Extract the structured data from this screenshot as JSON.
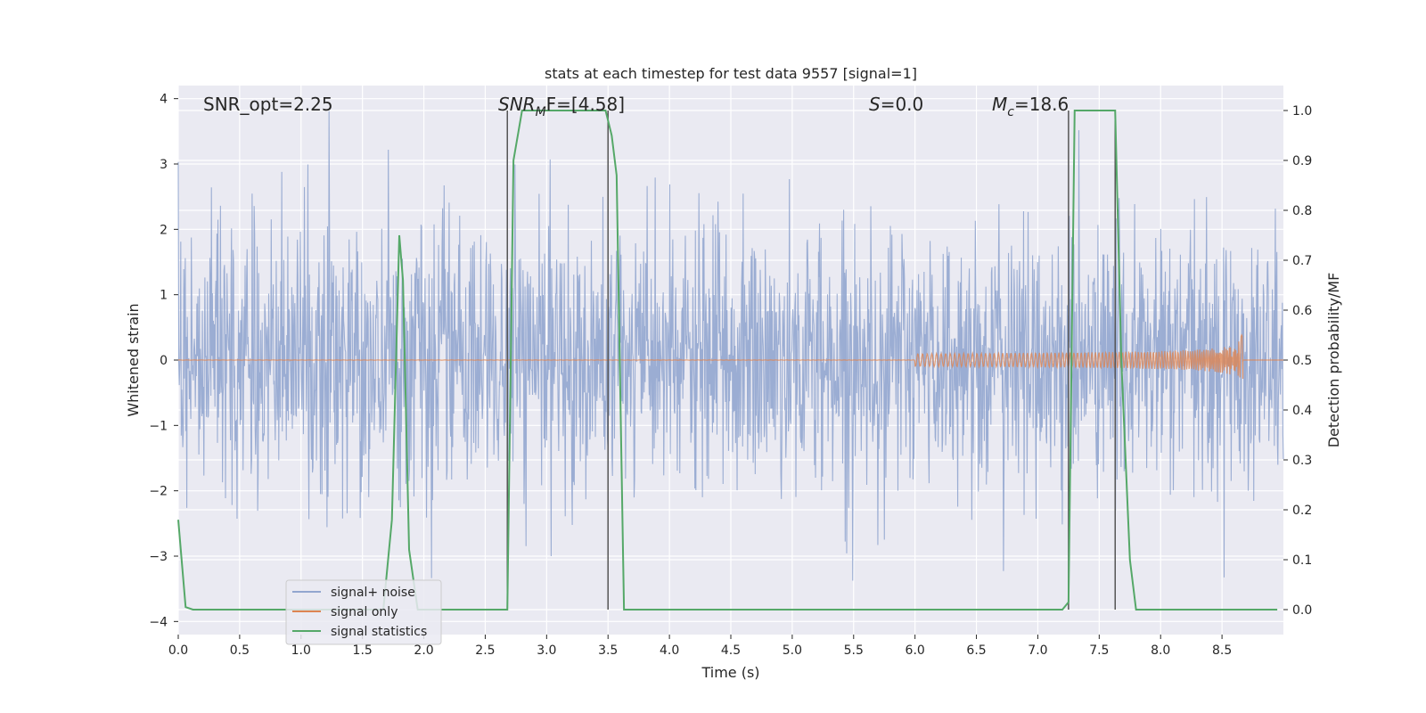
{
  "chart_data": {
    "type": "line",
    "title": "stats at each timestep for test data 9557 [signal=1]",
    "xlabel": "Time (s)",
    "ylabel_left": "Whitened strain",
    "ylabel_right": "Detection probability/MF",
    "xlim": [
      0.0,
      9.0
    ],
    "ylim_left": [
      -4.2,
      4.2
    ],
    "ylim_right": [
      -0.05,
      1.05
    ],
    "x_ticks": [
      "0.0",
      "0.5",
      "1.0",
      "1.5",
      "2.0",
      "2.5",
      "3.0",
      "3.5",
      "4.0",
      "4.5",
      "5.0",
      "5.5",
      "6.0",
      "6.5",
      "7.0",
      "7.5",
      "8.0",
      "8.5"
    ],
    "y_ticks_left": [
      "4",
      "3",
      "2",
      "1",
      "0",
      "−1",
      "−2",
      "−3",
      "−4"
    ],
    "y_ticks_right": [
      "1.0",
      "0.9",
      "0.8",
      "0.7",
      "0.6",
      "0.5",
      "0.4",
      "0.3",
      "0.2",
      "0.1",
      "0.0"
    ],
    "grid": true,
    "legend_position": "lower-left",
    "annotations": {
      "snr_opt": "SNR_opt=2.25",
      "snr_mf_prefix": "SNR",
      "snr_mf_sub": "M",
      "snr_mf_suffix": "F=[4.58]",
      "s_label_italic": "S",
      "s_label_rest": "=0.0",
      "mc_label_italic": "M",
      "mc_label_sub": "c",
      "mc_label_rest": "=18.6"
    },
    "series": [
      {
        "name": "signal+ noise",
        "color": "#92a6cf",
        "description_of_values": "whitened strain noise, approx gaussian, amplitude mostly within ±2, peaks to about ±3.8"
      },
      {
        "name": "signal only",
        "color": "#dd8452",
        "chirp_end_time": 8.67,
        "chirp_peak_amplitude": 0.5
      },
      {
        "name": "signal statistics",
        "color": "#55a868",
        "axis": "right",
        "x": [
          0.0,
          0.06,
          0.12,
          0.5,
          1.0,
          1.5,
          1.67,
          1.74,
          1.8,
          1.83,
          1.88,
          1.95,
          2.0,
          2.5,
          2.68,
          2.73,
          2.8,
          2.85,
          3.0,
          3.3,
          3.48,
          3.53,
          3.57,
          3.63,
          3.7,
          4.0,
          5.0,
          6.0,
          7.0,
          7.2,
          7.25,
          7.3,
          7.35,
          7.5,
          7.63,
          7.68,
          7.75,
          7.8,
          8.0,
          8.5,
          8.95
        ],
        "values": [
          0.18,
          0.005,
          0.0,
          0.0,
          0.0,
          0.0,
          0.0,
          0.18,
          0.75,
          0.66,
          0.12,
          0.0,
          0.0,
          0.0,
          0.0,
          0.9,
          1.0,
          1.0,
          1.0,
          1.0,
          1.0,
          0.95,
          0.87,
          0.0,
          0.0,
          0.0,
          0.0,
          0.0,
          0.0,
          0.0,
          0.015,
          1.0,
          1.0,
          1.0,
          1.0,
          0.5,
          0.1,
          0.0,
          0.0,
          0.0,
          0.0
        ]
      }
    ],
    "vertical_markers": [
      2.68,
      3.5,
      7.25,
      7.63
    ]
  }
}
